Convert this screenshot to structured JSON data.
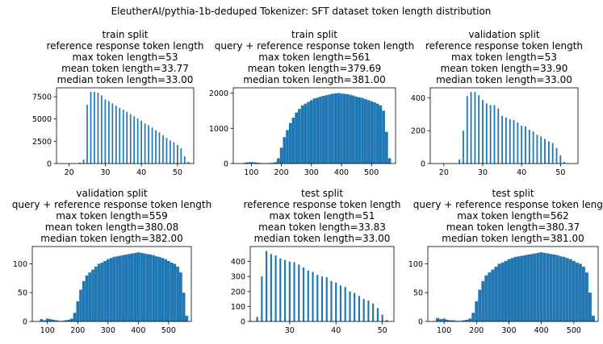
{
  "figure": {
    "suptitle": "EleutherAI/pythia-1b-deduped Tokenizer: SFT dataset token length distribution"
  },
  "colors": {
    "bar": "#1f77b4"
  },
  "chart_data": [
    {
      "type": "bar",
      "title_lines": [
        "train split",
        "reference response token length",
        "max token length=53",
        "mean token length=33.77",
        "median token length=33.00"
      ],
      "x": [
        23,
        24,
        25,
        26,
        27,
        28,
        29,
        30,
        31,
        32,
        33,
        34,
        35,
        36,
        37,
        38,
        39,
        40,
        41,
        42,
        43,
        44,
        45,
        46,
        47,
        48,
        49,
        50,
        51,
        52,
        53
      ],
      "values": [
        120,
        450,
        6600,
        8050,
        8050,
        7950,
        7650,
        7200,
        7000,
        6750,
        6500,
        6250,
        6050,
        5800,
        5550,
        5300,
        5050,
        4800,
        4500,
        4300,
        4050,
        3750,
        3500,
        3200,
        2900,
        2600,
        2400,
        2100,
        1700,
        800,
        200
      ],
      "xlim": [
        16.5,
        54.5
      ],
      "ylim": [
        0,
        8500
      ],
      "xticks": [
        20,
        30,
        40,
        50
      ],
      "yticks": [
        0,
        2500,
        5000,
        7500
      ],
      "xlabel": "",
      "ylabel": "",
      "grid": false
    },
    {
      "type": "bar",
      "title_lines": [
        "train split",
        "query + reference response token length",
        "max token length=561",
        "mean token length=379.69",
        "median token length=381.00"
      ],
      "x": [
        80,
        90,
        100,
        110,
        120,
        130,
        140,
        150,
        160,
        170,
        180,
        190,
        200,
        210,
        220,
        230,
        240,
        250,
        260,
        270,
        280,
        290,
        300,
        310,
        320,
        330,
        340,
        350,
        360,
        370,
        380,
        390,
        400,
        410,
        420,
        430,
        440,
        450,
        460,
        470,
        480,
        490,
        500,
        510,
        520,
        530,
        540,
        550,
        560
      ],
      "values": [
        25,
        35,
        40,
        35,
        25,
        15,
        10,
        10,
        15,
        20,
        40,
        150,
        450,
        750,
        950,
        1150,
        1300,
        1450,
        1550,
        1650,
        1700,
        1750,
        1800,
        1850,
        1870,
        1900,
        1920,
        1940,
        1960,
        1980,
        1990,
        2000,
        1990,
        1980,
        1970,
        1950,
        1930,
        1900,
        1880,
        1860,
        1830,
        1800,
        1770,
        1740,
        1700,
        1650,
        1500,
        900,
        150
      ],
      "xlim": [
        40,
        580
      ],
      "ylim": [
        0,
        2150
      ],
      "xticks": [
        100,
        200,
        300,
        400,
        500
      ],
      "yticks": [
        0,
        1000,
        2000
      ],
      "xlabel": "",
      "ylabel": "",
      "grid": false
    },
    {
      "type": "bar",
      "title_lines": [
        "validation split",
        "reference response token length",
        "max token length=53",
        "mean token length=33.90",
        "median token length=33.00"
      ],
      "x": [
        24,
        25,
        26,
        27,
        28,
        29,
        30,
        31,
        32,
        33,
        34,
        35,
        36,
        37,
        38,
        39,
        40,
        41,
        42,
        43,
        44,
        45,
        46,
        47,
        48,
        49,
        50,
        51,
        52
      ],
      "values": [
        25,
        200,
        410,
        435,
        435,
        415,
        385,
        365,
        355,
        355,
        335,
        290,
        280,
        270,
        265,
        250,
        230,
        225,
        205,
        195,
        175,
        165,
        150,
        135,
        125,
        95,
        50,
        10,
        3
      ],
      "xlim": [
        16.5,
        54.5
      ],
      "ylim": [
        0,
        460
      ],
      "xticks": [
        20,
        30,
        40,
        50
      ],
      "yticks": [
        0,
        200,
        400
      ],
      "xlabel": "",
      "ylabel": "",
      "grid": false
    },
    {
      "type": "bar",
      "title_lines": [
        "validation split",
        "query + reference response token length",
        "max token length=559",
        "mean token length=380.08",
        "median token length=382.00"
      ],
      "x": [
        80,
        90,
        100,
        110,
        120,
        130,
        140,
        150,
        160,
        170,
        180,
        190,
        200,
        210,
        220,
        230,
        240,
        250,
        260,
        270,
        280,
        290,
        300,
        310,
        320,
        330,
        340,
        350,
        360,
        370,
        380,
        390,
        400,
        410,
        420,
        430,
        440,
        450,
        460,
        470,
        480,
        490,
        500,
        510,
        520,
        530,
        540,
        550,
        560
      ],
      "values": [
        4,
        2,
        5,
        4,
        3,
        2,
        1,
        1,
        2,
        3,
        5,
        15,
        35,
        55,
        70,
        80,
        85,
        90,
        95,
        100,
        102,
        105,
        108,
        110,
        112,
        113,
        114,
        115,
        116,
        117,
        118,
        119,
        120,
        119,
        118,
        117,
        116,
        115,
        113,
        112,
        110,
        108,
        105,
        102,
        100,
        95,
        85,
        50,
        10
      ],
      "xlim": [
        50,
        575
      ],
      "ylim": [
        0,
        130
      ],
      "xticks": [
        100,
        200,
        300,
        400,
        500
      ],
      "yticks": [
        0,
        50,
        100
      ],
      "xlabel": "",
      "ylabel": "",
      "grid": false
    },
    {
      "type": "bar",
      "title_lines": [
        "test split",
        "reference response token length",
        "max token length=51",
        "mean token length=33.83",
        "median token length=33.00"
      ],
      "x": [
        23,
        24,
        25,
        26,
        27,
        28,
        29,
        30,
        31,
        32,
        33,
        34,
        35,
        36,
        37,
        38,
        39,
        40,
        41,
        42,
        43,
        44,
        45,
        46,
        47,
        48,
        49,
        50,
        51
      ],
      "values": [
        30,
        300,
        470,
        450,
        440,
        420,
        410,
        400,
        395,
        380,
        360,
        340,
        330,
        310,
        300,
        295,
        270,
        260,
        240,
        230,
        200,
        190,
        170,
        150,
        140,
        120,
        90,
        45,
        10
      ],
      "xlim": [
        21.5,
        52.5
      ],
      "ylim": [
        0,
        500
      ],
      "xticks": [
        30,
        40,
        50
      ],
      "yticks": [
        0,
        100,
        200,
        300,
        400
      ],
      "xlabel": "",
      "ylabel": "",
      "grid": false
    },
    {
      "type": "bar",
      "title_lines": [
        "test split",
        "query + reference response token length",
        "max token length=562",
        "mean token length=380.37",
        "median token length=381.00"
      ],
      "x": [
        80,
        90,
        100,
        110,
        120,
        130,
        140,
        150,
        160,
        170,
        180,
        190,
        200,
        210,
        220,
        230,
        240,
        250,
        260,
        270,
        280,
        290,
        300,
        310,
        320,
        330,
        340,
        350,
        360,
        370,
        380,
        390,
        400,
        410,
        420,
        430,
        440,
        450,
        460,
        470,
        480,
        490,
        500,
        510,
        520,
        530,
        540,
        550,
        560
      ],
      "values": [
        6,
        4,
        5,
        3,
        2,
        2,
        1,
        1,
        2,
        3,
        5,
        15,
        35,
        55,
        70,
        80,
        85,
        90,
        95,
        100,
        102,
        105,
        108,
        110,
        112,
        113,
        114,
        115,
        116,
        117,
        118,
        119,
        120,
        119,
        118,
        117,
        116,
        115,
        113,
        112,
        110,
        108,
        105,
        102,
        100,
        95,
        85,
        50,
        10
      ],
      "xlim": [
        50,
        575
      ],
      "ylim": [
        0,
        130
      ],
      "xticks": [
        100,
        200,
        300,
        400,
        500
      ],
      "yticks": [
        0,
        50,
        100
      ],
      "xlabel": "",
      "ylabel": "",
      "grid": false
    }
  ]
}
